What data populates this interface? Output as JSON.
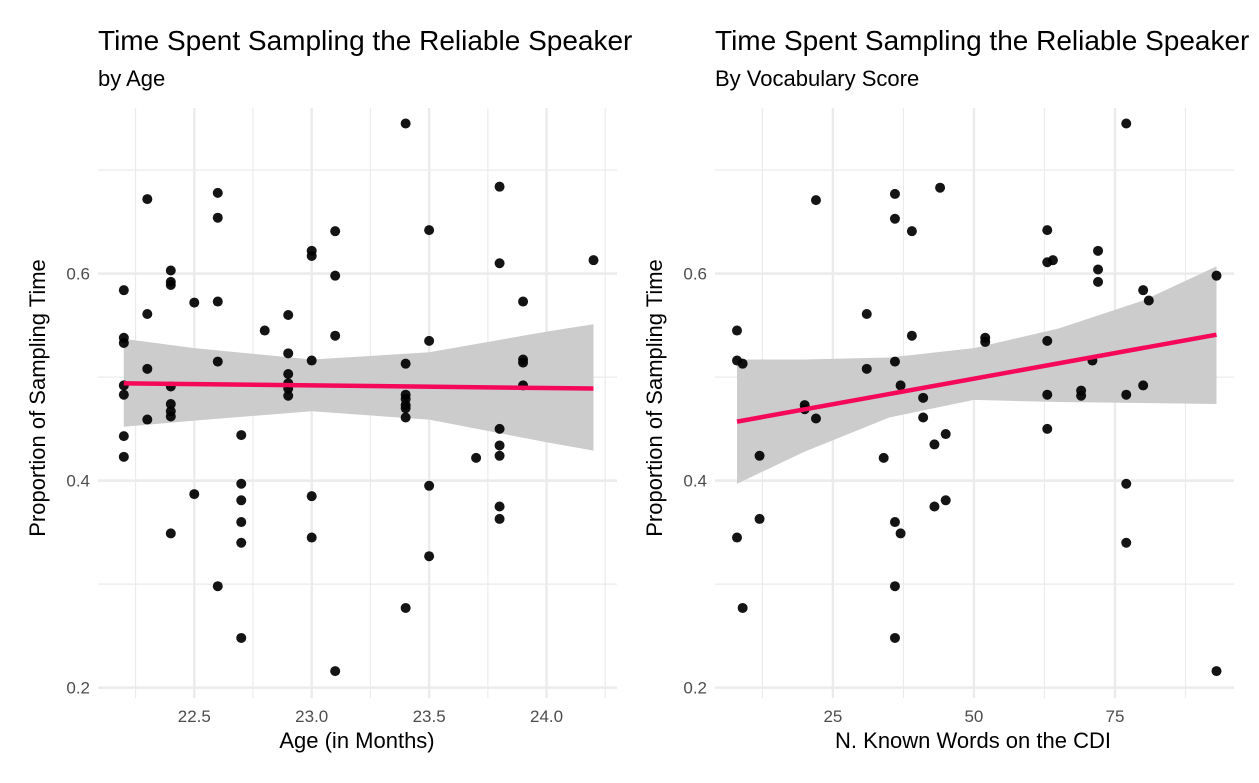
{
  "chart_data": [
    {
      "type": "scatter",
      "title": "Time Spent Sampling the Reliable Speaker",
      "subtitle": "by Age",
      "xlabel": "Age (in Months)",
      "ylabel": "Proportion of Sampling Time",
      "xlim": [
        22.09,
        24.3
      ],
      "ylim": [
        0.19,
        0.76
      ],
      "xticks": [
        22.5,
        23.0,
        23.5,
        24.0
      ],
      "xtick_labels": [
        "22.5",
        "23.0",
        "23.5",
        "24.0"
      ],
      "yticks": [
        0.2,
        0.4,
        0.6
      ],
      "ytick_labels": [
        "0.2",
        "0.4",
        "0.6"
      ],
      "grid": true,
      "colors": {
        "points": "#000000",
        "fit_line": "#f5085a",
        "ribbon": "#cccccc",
        "grid": "#ebebeb"
      },
      "points": [
        {
          "x": 22.2,
          "y": 0.584
        },
        {
          "x": 22.2,
          "y": 0.538
        },
        {
          "x": 22.2,
          "y": 0.533
        },
        {
          "x": 22.2,
          "y": 0.492
        },
        {
          "x": 22.2,
          "y": 0.483
        },
        {
          "x": 22.2,
          "y": 0.443
        },
        {
          "x": 22.2,
          "y": 0.423
        },
        {
          "x": 22.3,
          "y": 0.672
        },
        {
          "x": 22.3,
          "y": 0.561
        },
        {
          "x": 22.3,
          "y": 0.508
        },
        {
          "x": 22.3,
          "y": 0.459
        },
        {
          "x": 22.4,
          "y": 0.603
        },
        {
          "x": 22.4,
          "y": 0.592
        },
        {
          "x": 22.4,
          "y": 0.589
        },
        {
          "x": 22.4,
          "y": 0.491
        },
        {
          "x": 22.4,
          "y": 0.474
        },
        {
          "x": 22.4,
          "y": 0.467
        },
        {
          "x": 22.4,
          "y": 0.462
        },
        {
          "x": 22.4,
          "y": 0.349
        },
        {
          "x": 22.5,
          "y": 0.572
        },
        {
          "x": 22.5,
          "y": 0.387
        },
        {
          "x": 22.6,
          "y": 0.678
        },
        {
          "x": 22.6,
          "y": 0.654
        },
        {
          "x": 22.6,
          "y": 0.573
        },
        {
          "x": 22.6,
          "y": 0.515
        },
        {
          "x": 22.6,
          "y": 0.298
        },
        {
          "x": 22.7,
          "y": 0.444
        },
        {
          "x": 22.7,
          "y": 0.397
        },
        {
          "x": 22.7,
          "y": 0.381
        },
        {
          "x": 22.7,
          "y": 0.36
        },
        {
          "x": 22.7,
          "y": 0.34
        },
        {
          "x": 22.7,
          "y": 0.248
        },
        {
          "x": 22.8,
          "y": 0.545
        },
        {
          "x": 22.9,
          "y": 0.56
        },
        {
          "x": 22.9,
          "y": 0.523
        },
        {
          "x": 22.9,
          "y": 0.503
        },
        {
          "x": 22.9,
          "y": 0.494
        },
        {
          "x": 22.9,
          "y": 0.489
        },
        {
          "x": 22.9,
          "y": 0.482
        },
        {
          "x": 23.0,
          "y": 0.622
        },
        {
          "x": 23.0,
          "y": 0.617
        },
        {
          "x": 23.0,
          "y": 0.516
        },
        {
          "x": 23.0,
          "y": 0.385
        },
        {
          "x": 23.0,
          "y": 0.345
        },
        {
          "x": 23.1,
          "y": 0.641
        },
        {
          "x": 23.1,
          "y": 0.598
        },
        {
          "x": 23.1,
          "y": 0.54
        },
        {
          "x": 23.1,
          "y": 0.216
        },
        {
          "x": 23.4,
          "y": 0.745
        },
        {
          "x": 23.4,
          "y": 0.513
        },
        {
          "x": 23.4,
          "y": 0.483
        },
        {
          "x": 23.4,
          "y": 0.479
        },
        {
          "x": 23.4,
          "y": 0.473
        },
        {
          "x": 23.4,
          "y": 0.47
        },
        {
          "x": 23.4,
          "y": 0.461
        },
        {
          "x": 23.4,
          "y": 0.277
        },
        {
          "x": 23.5,
          "y": 0.642
        },
        {
          "x": 23.5,
          "y": 0.535
        },
        {
          "x": 23.5,
          "y": 0.395
        },
        {
          "x": 23.5,
          "y": 0.327
        },
        {
          "x": 23.7,
          "y": 0.422
        },
        {
          "x": 23.8,
          "y": 0.684
        },
        {
          "x": 23.8,
          "y": 0.61
        },
        {
          "x": 23.8,
          "y": 0.45
        },
        {
          "x": 23.8,
          "y": 0.434
        },
        {
          "x": 23.8,
          "y": 0.424
        },
        {
          "x": 23.8,
          "y": 0.375
        },
        {
          "x": 23.8,
          "y": 0.363
        },
        {
          "x": 23.9,
          "y": 0.573
        },
        {
          "x": 23.9,
          "y": 0.517
        },
        {
          "x": 23.9,
          "y": 0.514
        },
        {
          "x": 23.9,
          "y": 0.492
        },
        {
          "x": 24.2,
          "y": 0.613
        }
      ],
      "fit_line": [
        {
          "x": 22.2,
          "y": 0.494
        },
        {
          "x": 24.2,
          "y": 0.489
        }
      ],
      "ribbon": {
        "x": [
          22.2,
          22.5,
          23.0,
          23.5,
          24.0,
          24.2
        ],
        "upper": [
          0.537,
          0.528,
          0.517,
          0.524,
          0.544,
          0.551
        ],
        "lower": [
          0.452,
          0.458,
          0.467,
          0.459,
          0.437,
          0.429
        ]
      }
    },
    {
      "type": "scatter",
      "title": "Time Spent Sampling the Reliable Speaker",
      "subtitle": "By Vocabulary Score",
      "xlabel": "N. Known Words on the CDI",
      "ylabel": "Proportion of Sampling Time",
      "xlim": [
        4.1,
        96.1
      ],
      "ylim": [
        0.19,
        0.76
      ],
      "xticks": [
        25,
        50,
        75
      ],
      "xtick_labels": [
        "25",
        "50",
        "75"
      ],
      "yticks": [
        0.2,
        0.4,
        0.6
      ],
      "ytick_labels": [
        "0.2",
        "0.4",
        "0.6"
      ],
      "grid": true,
      "colors": {
        "points": "#000000",
        "fit_line": "#f5085a",
        "ribbon": "#cccccc",
        "grid": "#ebebeb"
      },
      "points": [
        {
          "x": 8,
          "y": 0.545
        },
        {
          "x": 8,
          "y": 0.516
        },
        {
          "x": 8,
          "y": 0.345
        },
        {
          "x": 9,
          "y": 0.513
        },
        {
          "x": 9,
          "y": 0.277
        },
        {
          "x": 12,
          "y": 0.424
        },
        {
          "x": 12,
          "y": 0.363
        },
        {
          "x": 20,
          "y": 0.473
        },
        {
          "x": 20,
          "y": 0.469
        },
        {
          "x": 22,
          "y": 0.671
        },
        {
          "x": 22,
          "y": 0.46
        },
        {
          "x": 31,
          "y": 0.561
        },
        {
          "x": 31,
          "y": 0.508
        },
        {
          "x": 34,
          "y": 0.422
        },
        {
          "x": 36,
          "y": 0.677
        },
        {
          "x": 36,
          "y": 0.653
        },
        {
          "x": 36,
          "y": 0.515
        },
        {
          "x": 36,
          "y": 0.36
        },
        {
          "x": 36,
          "y": 0.298
        },
        {
          "x": 36,
          "y": 0.248
        },
        {
          "x": 37,
          "y": 0.492
        },
        {
          "x": 37,
          "y": 0.349
        },
        {
          "x": 39,
          "y": 0.641
        },
        {
          "x": 39,
          "y": 0.54
        },
        {
          "x": 41,
          "y": 0.48
        },
        {
          "x": 41,
          "y": 0.461
        },
        {
          "x": 43,
          "y": 0.435
        },
        {
          "x": 43,
          "y": 0.375
        },
        {
          "x": 44,
          "y": 0.683
        },
        {
          "x": 45,
          "y": 0.445
        },
        {
          "x": 45,
          "y": 0.381
        },
        {
          "x": 52,
          "y": 0.538
        },
        {
          "x": 52,
          "y": 0.534
        },
        {
          "x": 63,
          "y": 0.642
        },
        {
          "x": 63,
          "y": 0.611
        },
        {
          "x": 63,
          "y": 0.535
        },
        {
          "x": 63,
          "y": 0.483
        },
        {
          "x": 63,
          "y": 0.45
        },
        {
          "x": 64,
          "y": 0.613
        },
        {
          "x": 69,
          "y": 0.487
        },
        {
          "x": 69,
          "y": 0.482
        },
        {
          "x": 71,
          "y": 0.516
        },
        {
          "x": 72,
          "y": 0.622
        },
        {
          "x": 72,
          "y": 0.604
        },
        {
          "x": 72,
          "y": 0.592
        },
        {
          "x": 77,
          "y": 0.745
        },
        {
          "x": 77,
          "y": 0.483
        },
        {
          "x": 77,
          "y": 0.397
        },
        {
          "x": 77,
          "y": 0.34
        },
        {
          "x": 80,
          "y": 0.584
        },
        {
          "x": 80,
          "y": 0.492
        },
        {
          "x": 81,
          "y": 0.574
        },
        {
          "x": 93,
          "y": 0.598
        },
        {
          "x": 93,
          "y": 0.216
        }
      ],
      "fit_line": [
        {
          "x": 8,
          "y": 0.457
        },
        {
          "x": 93,
          "y": 0.541
        }
      ],
      "ribbon": {
        "x": [
          8,
          20,
          35,
          50,
          65,
          80,
          93
        ],
        "upper": [
          0.517,
          0.517,
          0.519,
          0.528,
          0.547,
          0.574,
          0.607
        ],
        "lower": [
          0.397,
          0.428,
          0.461,
          0.478,
          0.476,
          0.475,
          0.474
        ]
      }
    }
  ]
}
